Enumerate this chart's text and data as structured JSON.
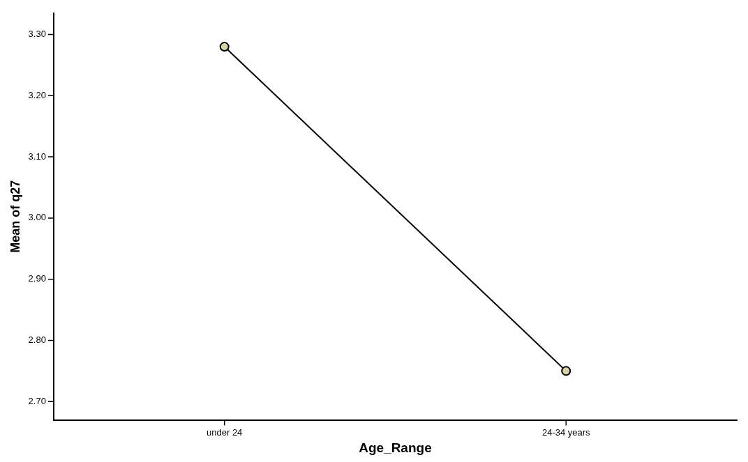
{
  "chart_data": {
    "type": "line",
    "xlabel": "Age_Range",
    "ylabel": "Mean of q27",
    "categories": [
      "under 24",
      "24-34 years"
    ],
    "series": [
      {
        "color": "#000000",
        "values": [
          3.28,
          2.75
        ]
      }
    ],
    "ylim": [
      2.67,
      3.335
    ],
    "yticks": [
      {
        "value": 2.7,
        "label": "2.70"
      },
      {
        "value": 2.8,
        "label": "2.80"
      },
      {
        "value": 2.9,
        "label": "2.90"
      },
      {
        "value": 3.0,
        "label": "3.00"
      },
      {
        "value": 3.1,
        "label": "3.10"
      },
      {
        "value": 3.2,
        "label": "3.20"
      },
      {
        "value": 3.3,
        "label": "3.30"
      }
    ],
    "grid": false,
    "legend": false,
    "marker": "circle",
    "line_style": "solid"
  }
}
